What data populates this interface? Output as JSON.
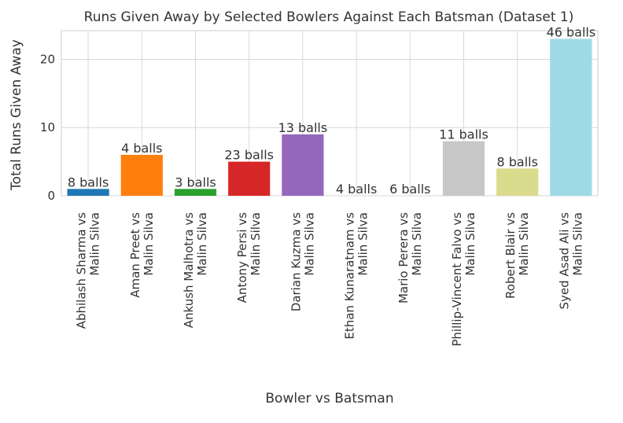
{
  "chart_data": {
    "type": "bar",
    "title": "Runs Given Away by Selected Bowlers Against Each Batsman (Dataset 1)",
    "xlabel": "Bowler vs Batsman",
    "ylabel": "Total Runs Given Away",
    "ylim": [
      0,
      24.2
    ],
    "yticks": [
      0,
      10,
      20
    ],
    "grid": true,
    "categories": [
      [
        "Abhilash Sharma vs",
        "Malin Silva"
      ],
      [
        "Aman Preet vs",
        "Malin Silva"
      ],
      [
        "Ankush Malhotra vs",
        "Malin Silva"
      ],
      [
        "Antony Persi vs",
        "Malin Silva"
      ],
      [
        "Darian Kuzma vs",
        "Malin Silva"
      ],
      [
        "Ethan Kunaratnam vs",
        "Malin Silva"
      ],
      [
        "Mario Perera vs",
        "Malin Silva"
      ],
      [
        "Phillip-Vincent Falvo vs",
        "Malin Silva"
      ],
      [
        "Robert Blair vs",
        "Malin Silva"
      ],
      [
        "Syed Asad Ali vs",
        "Malin Silva"
      ]
    ],
    "values": [
      1,
      6,
      1,
      5,
      9,
      0,
      0,
      8,
      4,
      23
    ],
    "bar_labels": [
      "8 balls",
      "4 balls",
      "3 balls",
      "23 balls",
      "13 balls",
      "4 balls",
      "6 balls",
      "11 balls",
      "8 balls",
      "46 balls"
    ],
    "colors": [
      "#1f77b4",
      "#ff7f0e",
      "#2ca02c",
      "#d62728",
      "#9467bd",
      "#8c564b",
      "#e377c2",
      "#c7c7c7",
      "#dbdb8d",
      "#9edae5"
    ]
  }
}
